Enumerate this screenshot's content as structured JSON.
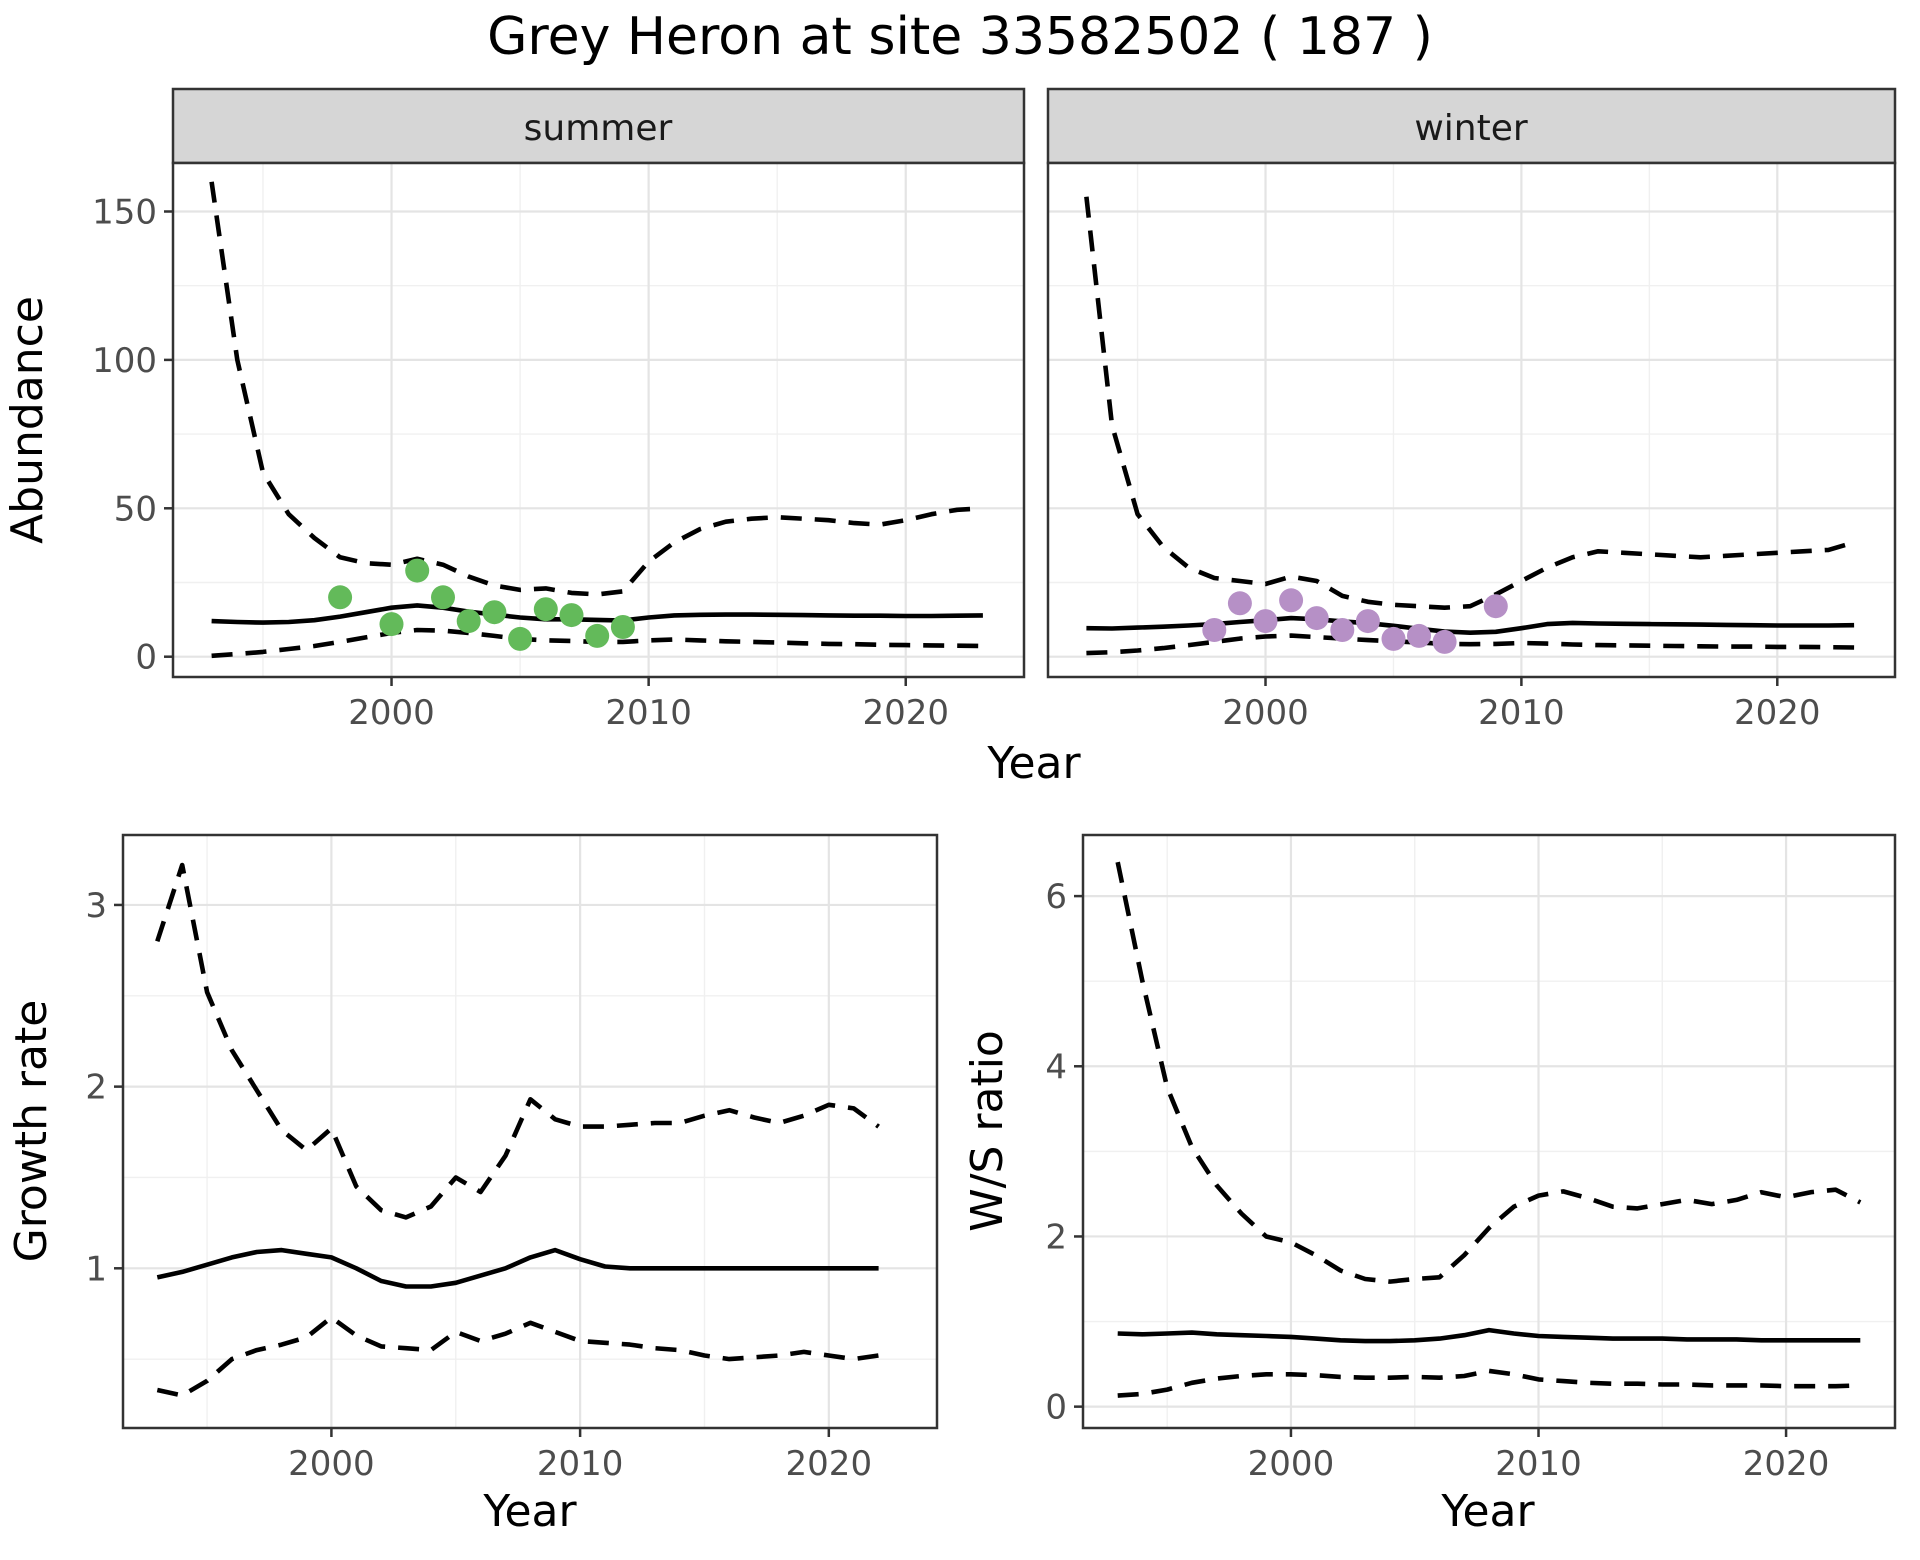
{
  "title": "Grey Heron at site 33582502 ( 187 )",
  "facets": [
    "summer",
    "winter"
  ],
  "colors": {
    "summer_point": "#63ba5a",
    "winter_point": "#b690c6",
    "line": "#000000",
    "strip_bg": "#d6d6d6",
    "panel_border": "#333333",
    "grid_major": "#e4e4e4",
    "grid_minor": "#f0f0f0",
    "tick_label": "#4d4d4d"
  },
  "chart_data": [
    {
      "id": "abundance-summer",
      "type": "line",
      "facet": "summer",
      "xlabel": "Year",
      "ylabel": "Abundance",
      "xlim": [
        1991.5,
        2024.6
      ],
      "ylim": [
        -6.84,
        166.34
      ],
      "x_ticks": [
        2000,
        2010,
        2020
      ],
      "x_tick_labels": [
        "2000",
        "2010",
        "2020"
      ],
      "x_minor": [
        1995,
        2005,
        2015
      ],
      "y_ticks": [
        0,
        50,
        100,
        150
      ],
      "y_tick_labels": [
        "0",
        "50",
        "100",
        "150"
      ],
      "y_minor": [
        25,
        75,
        125
      ],
      "grid": true,
      "legend": "none",
      "years": [
        1993,
        1994,
        1995,
        1996,
        1997,
        1998,
        1999,
        2000,
        2001,
        2002,
        2003,
        2004,
        2005,
        2006,
        2007,
        2008,
        2009,
        2010,
        2011,
        2012,
        2013,
        2014,
        2015,
        2016,
        2017,
        2018,
        2019,
        2020,
        2021,
        2022,
        2023
      ],
      "series": [
        {
          "name": "ci_upper",
          "style": "dashed",
          "values": [
            160,
            100,
            62,
            48,
            40,
            33.5,
            31.5,
            31,
            33,
            31,
            27,
            24,
            22.5,
            23,
            21.5,
            21,
            22,
            32,
            38.5,
            43,
            45.5,
            46.5,
            47,
            46.5,
            46,
            45,
            44.5,
            46,
            48,
            49.5,
            50
          ]
        },
        {
          "name": "median",
          "style": "solid",
          "values": [
            12,
            11.7,
            11.5,
            11.7,
            12.3,
            13.5,
            15,
            16.5,
            17.3,
            16.5,
            15.2,
            14.2,
            13.2,
            12.6,
            12.6,
            12.4,
            12.2,
            13.2,
            13.9,
            14.1,
            14.2,
            14.2,
            14.1,
            14,
            13.9,
            13.8,
            13.8,
            13.7,
            13.7,
            13.8,
            13.9
          ]
        },
        {
          "name": "ci_lower",
          "style": "dashed",
          "values": [
            0.3,
            0.9,
            1.6,
            2.6,
            3.6,
            5,
            6.5,
            8,
            9,
            8.8,
            8,
            7,
            6,
            5.5,
            5.3,
            5,
            5,
            5.5,
            5.8,
            5.5,
            5.2,
            5,
            4.8,
            4.5,
            4.3,
            4.2,
            4,
            3.9,
            3.8,
            3.7,
            3.6
          ]
        }
      ],
      "points": {
        "years": [
          1998,
          2000,
          2001,
          2002,
          2003,
          2004,
          2005,
          2006,
          2007,
          2008,
          2009
        ],
        "values": [
          20,
          11,
          29,
          20,
          12,
          15,
          6,
          16,
          14,
          7,
          10
        ],
        "color_key": "summer_point"
      }
    },
    {
      "id": "abundance-winter",
      "type": "line",
      "facet": "winter",
      "xlabel": "Year",
      "ylabel": "Abundance",
      "xlim": [
        1991.5,
        2024.6
      ],
      "ylim": [
        -6.84,
        166.34
      ],
      "x_ticks": [
        2000,
        2010,
        2020
      ],
      "x_tick_labels": [
        "2000",
        "2010",
        "2020"
      ],
      "x_minor": [
        1995,
        2005,
        2015
      ],
      "y_ticks": [
        0,
        50,
        100,
        150
      ],
      "y_tick_labels": [
        "0",
        "50",
        "100",
        "150"
      ],
      "y_minor": [
        25,
        75,
        125
      ],
      "grid": true,
      "legend": "none",
      "years": [
        1993,
        1994,
        1995,
        1996,
        1997,
        1998,
        1999,
        2000,
        2001,
        2002,
        2003,
        2004,
        2005,
        2006,
        2007,
        2008,
        2009,
        2010,
        2011,
        2012,
        2013,
        2014,
        2015,
        2016,
        2017,
        2018,
        2019,
        2020,
        2021,
        2022,
        2023
      ],
      "series": [
        {
          "name": "ci_upper",
          "style": "dashed",
          "values": [
            155,
            78,
            48,
            37,
            30,
            26.5,
            25.5,
            24.5,
            27,
            25.5,
            20.5,
            18.5,
            17.5,
            17,
            16.5,
            17,
            21,
            25.5,
            30,
            33.5,
            35.5,
            35,
            34.5,
            34,
            33.5,
            34,
            34.5,
            35,
            35.5,
            36,
            38.5
          ]
        },
        {
          "name": "median",
          "style": "solid",
          "values": [
            9.6,
            9.5,
            9.8,
            10.1,
            10.5,
            11,
            11.7,
            12.3,
            13,
            12.6,
            11.9,
            11.3,
            10.4,
            9.4,
            8.5,
            8.1,
            8.4,
            9.6,
            11,
            11.4,
            11.2,
            11.1,
            11,
            10.9,
            10.8,
            10.7,
            10.6,
            10.5,
            10.5,
            10.5,
            10.6
          ]
        },
        {
          "name": "ci_lower",
          "style": "dashed",
          "values": [
            1.2,
            1.5,
            2.1,
            2.9,
            3.9,
            5,
            6.1,
            6.8,
            7.1,
            6.6,
            6.1,
            5.6,
            5.2,
            4.8,
            4.3,
            4.2,
            4.3,
            4.6,
            4.4,
            4.1,
            3.9,
            3.8,
            3.7,
            3.6,
            3.5,
            3.4,
            3.4,
            3.3,
            3.3,
            3.2,
            3.1
          ]
        }
      ],
      "points": {
        "years": [
          1998,
          1999,
          2000,
          2001,
          2002,
          2003,
          2004,
          2005,
          2006,
          2007,
          2009
        ],
        "values": [
          9,
          18,
          12,
          19,
          13,
          9,
          12,
          6,
          7,
          5,
          17
        ],
        "color_key": "winter_point"
      }
    },
    {
      "id": "growth-rate",
      "type": "line",
      "facet": null,
      "xlabel": "Year",
      "ylabel": "Growth rate",
      "xlim": [
        1991.62,
        2024.35
      ],
      "ylim": [
        0.121,
        3.385
      ],
      "x_ticks": [
        2000,
        2010,
        2020
      ],
      "x_tick_labels": [
        "2000",
        "2010",
        "2020"
      ],
      "x_minor": [
        1995,
        2005,
        2015
      ],
      "y_ticks": [
        1,
        2,
        3
      ],
      "y_tick_labels": [
        "1",
        "2",
        "3"
      ],
      "y_minor": [
        0.5,
        1.5,
        2.5
      ],
      "grid": true,
      "legend": "none",
      "years": [
        1993,
        1994,
        1995,
        1996,
        1997,
        1998,
        1999,
        2000,
        2001,
        2002,
        2003,
        2004,
        2005,
        2006,
        2007,
        2008,
        2009,
        2010,
        2011,
        2012,
        2013,
        2014,
        2015,
        2016,
        2017,
        2018,
        2019,
        2020,
        2021,
        2022
      ],
      "series": [
        {
          "name": "ci_upper",
          "style": "dashed",
          "values": [
            2.8,
            3.22,
            2.52,
            2.2,
            1.98,
            1.76,
            1.65,
            1.77,
            1.45,
            1.32,
            1.28,
            1.34,
            1.5,
            1.42,
            1.62,
            1.93,
            1.82,
            1.78,
            1.78,
            1.79,
            1.8,
            1.8,
            1.84,
            1.87,
            1.83,
            1.8,
            1.84,
            1.9,
            1.88,
            1.78
          ]
        },
        {
          "name": "median",
          "style": "solid",
          "values": [
            0.95,
            0.98,
            1.02,
            1.06,
            1.09,
            1.1,
            1.08,
            1.06,
            1.0,
            0.93,
            0.9,
            0.9,
            0.92,
            0.96,
            1.0,
            1.06,
            1.1,
            1.05,
            1.01,
            1.0,
            1.0,
            1.0,
            1.0,
            1.0,
            1.0,
            1.0,
            1.0,
            1.0,
            1.0,
            1.0
          ]
        },
        {
          "name": "ci_lower",
          "style": "dashed",
          "values": [
            0.33,
            0.3,
            0.38,
            0.5,
            0.55,
            0.58,
            0.62,
            0.73,
            0.63,
            0.57,
            0.56,
            0.55,
            0.65,
            0.6,
            0.64,
            0.7,
            0.65,
            0.6,
            0.59,
            0.58,
            0.56,
            0.55,
            0.52,
            0.5,
            0.51,
            0.52,
            0.54,
            0.52,
            0.5,
            0.52
          ]
        }
      ],
      "points": null
    },
    {
      "id": "ws-ratio",
      "type": "line",
      "facet": null,
      "xlabel": "Year",
      "ylabel": "W/S ratio",
      "xlim": [
        1991.6,
        2024.4
      ],
      "ylim": [
        -0.251,
        6.718
      ],
      "x_ticks": [
        2000,
        2010,
        2020
      ],
      "x_tick_labels": [
        "2000",
        "2010",
        "2020"
      ],
      "x_minor": [
        1995,
        2005,
        2015
      ],
      "y_ticks": [
        0,
        2,
        4,
        6
      ],
      "y_tick_labels": [
        "0",
        "2",
        "4",
        "6"
      ],
      "y_minor": [
        1,
        3,
        5
      ],
      "grid": true,
      "legend": "none",
      "years": [
        1993,
        1994,
        1995,
        1996,
        1997,
        1998,
        1999,
        2000,
        2001,
        2002,
        2003,
        2004,
        2005,
        2006,
        2007,
        2008,
        2009,
        2010,
        2011,
        2012,
        2013,
        2014,
        2015,
        2016,
        2017,
        2018,
        2019,
        2020,
        2021,
        2022,
        2023
      ],
      "series": [
        {
          "name": "ci_upper",
          "style": "dashed",
          "values": [
            6.4,
            5.0,
            3.75,
            3.05,
            2.6,
            2.27,
            2.0,
            1.93,
            1.78,
            1.6,
            1.5,
            1.47,
            1.5,
            1.52,
            1.78,
            2.1,
            2.35,
            2.48,
            2.53,
            2.45,
            2.35,
            2.33,
            2.38,
            2.43,
            2.38,
            2.43,
            2.52,
            2.46,
            2.52,
            2.55,
            2.4
          ]
        },
        {
          "name": "median",
          "style": "solid",
          "values": [
            0.86,
            0.85,
            0.86,
            0.87,
            0.85,
            0.84,
            0.83,
            0.82,
            0.8,
            0.78,
            0.77,
            0.77,
            0.78,
            0.8,
            0.84,
            0.9,
            0.86,
            0.83,
            0.82,
            0.81,
            0.8,
            0.8,
            0.8,
            0.79,
            0.79,
            0.79,
            0.78,
            0.78,
            0.78,
            0.78,
            0.78
          ]
        },
        {
          "name": "ci_lower",
          "style": "dashed",
          "values": [
            0.13,
            0.15,
            0.2,
            0.28,
            0.33,
            0.36,
            0.38,
            0.38,
            0.37,
            0.35,
            0.34,
            0.34,
            0.35,
            0.34,
            0.36,
            0.42,
            0.38,
            0.32,
            0.3,
            0.28,
            0.27,
            0.27,
            0.26,
            0.26,
            0.25,
            0.25,
            0.25,
            0.24,
            0.24,
            0.24,
            0.25
          ]
        }
      ],
      "points": null
    }
  ]
}
